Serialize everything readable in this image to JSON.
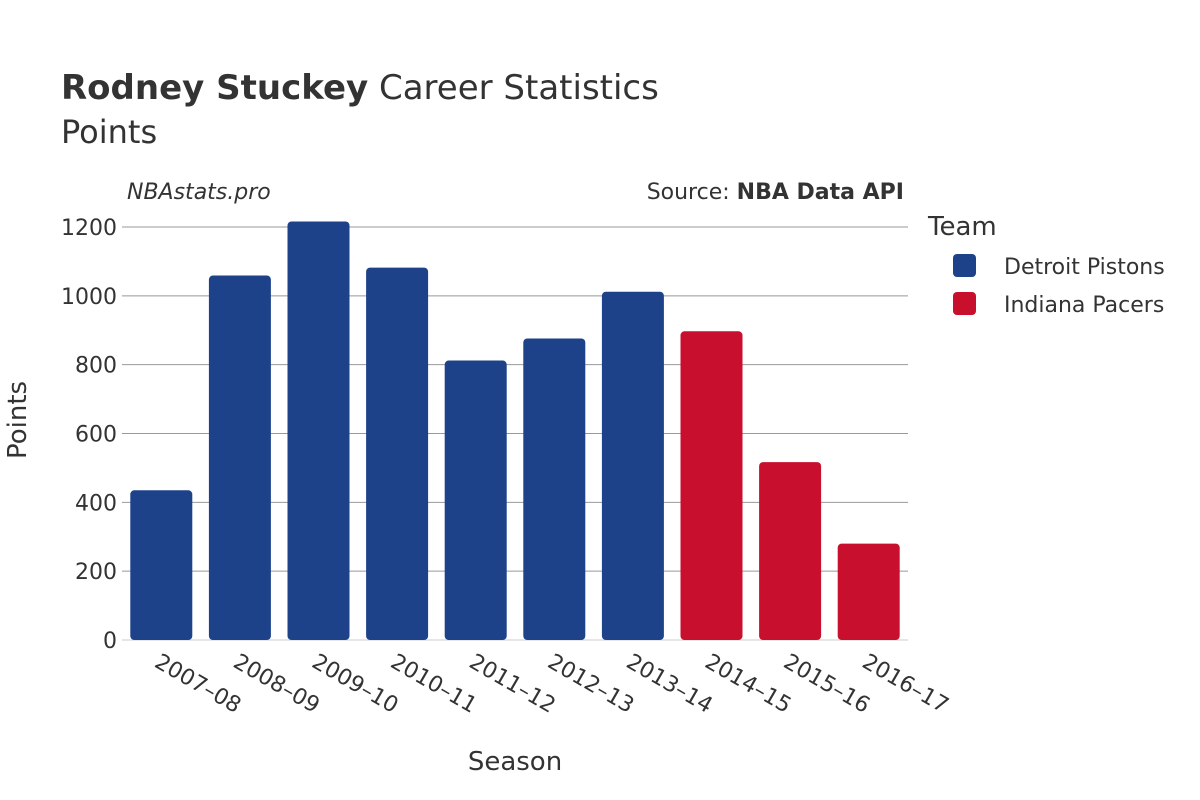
{
  "header": {
    "title_bold": "Rodney Stuckey",
    "title_rest": "Career Statistics",
    "subtitle": "Points"
  },
  "credits": {
    "site": "NBAstats.pro",
    "source_prefix": "Source: ",
    "source_name": "NBA Data API"
  },
  "legend": {
    "title": "Team",
    "items": [
      {
        "name": "Detroit Pistons",
        "color": "#1d428a"
      },
      {
        "name": "Indiana Pacers",
        "color": "#c8102e"
      }
    ]
  },
  "chart_data": {
    "type": "bar",
    "xlabel": "Season",
    "ylabel": "Points",
    "ylim": [
      0,
      1250
    ],
    "yticks": [
      0,
      200,
      400,
      600,
      800,
      1000,
      1200
    ],
    "grid": true,
    "legend_position": "right",
    "categories": [
      "2007–08",
      "2008–09",
      "2009–10",
      "2010–11",
      "2011–12",
      "2012–13",
      "2013–14",
      "2014–15",
      "2015–16",
      "2016–17"
    ],
    "values": [
      435,
      1059,
      1216,
      1082,
      812,
      876,
      1012,
      897,
      517,
      280
    ],
    "teams": [
      "Detroit Pistons",
      "Detroit Pistons",
      "Detroit Pistons",
      "Detroit Pistons",
      "Detroit Pistons",
      "Detroit Pistons",
      "Detroit Pistons",
      "Indiana Pacers",
      "Indiana Pacers",
      "Indiana Pacers"
    ]
  }
}
